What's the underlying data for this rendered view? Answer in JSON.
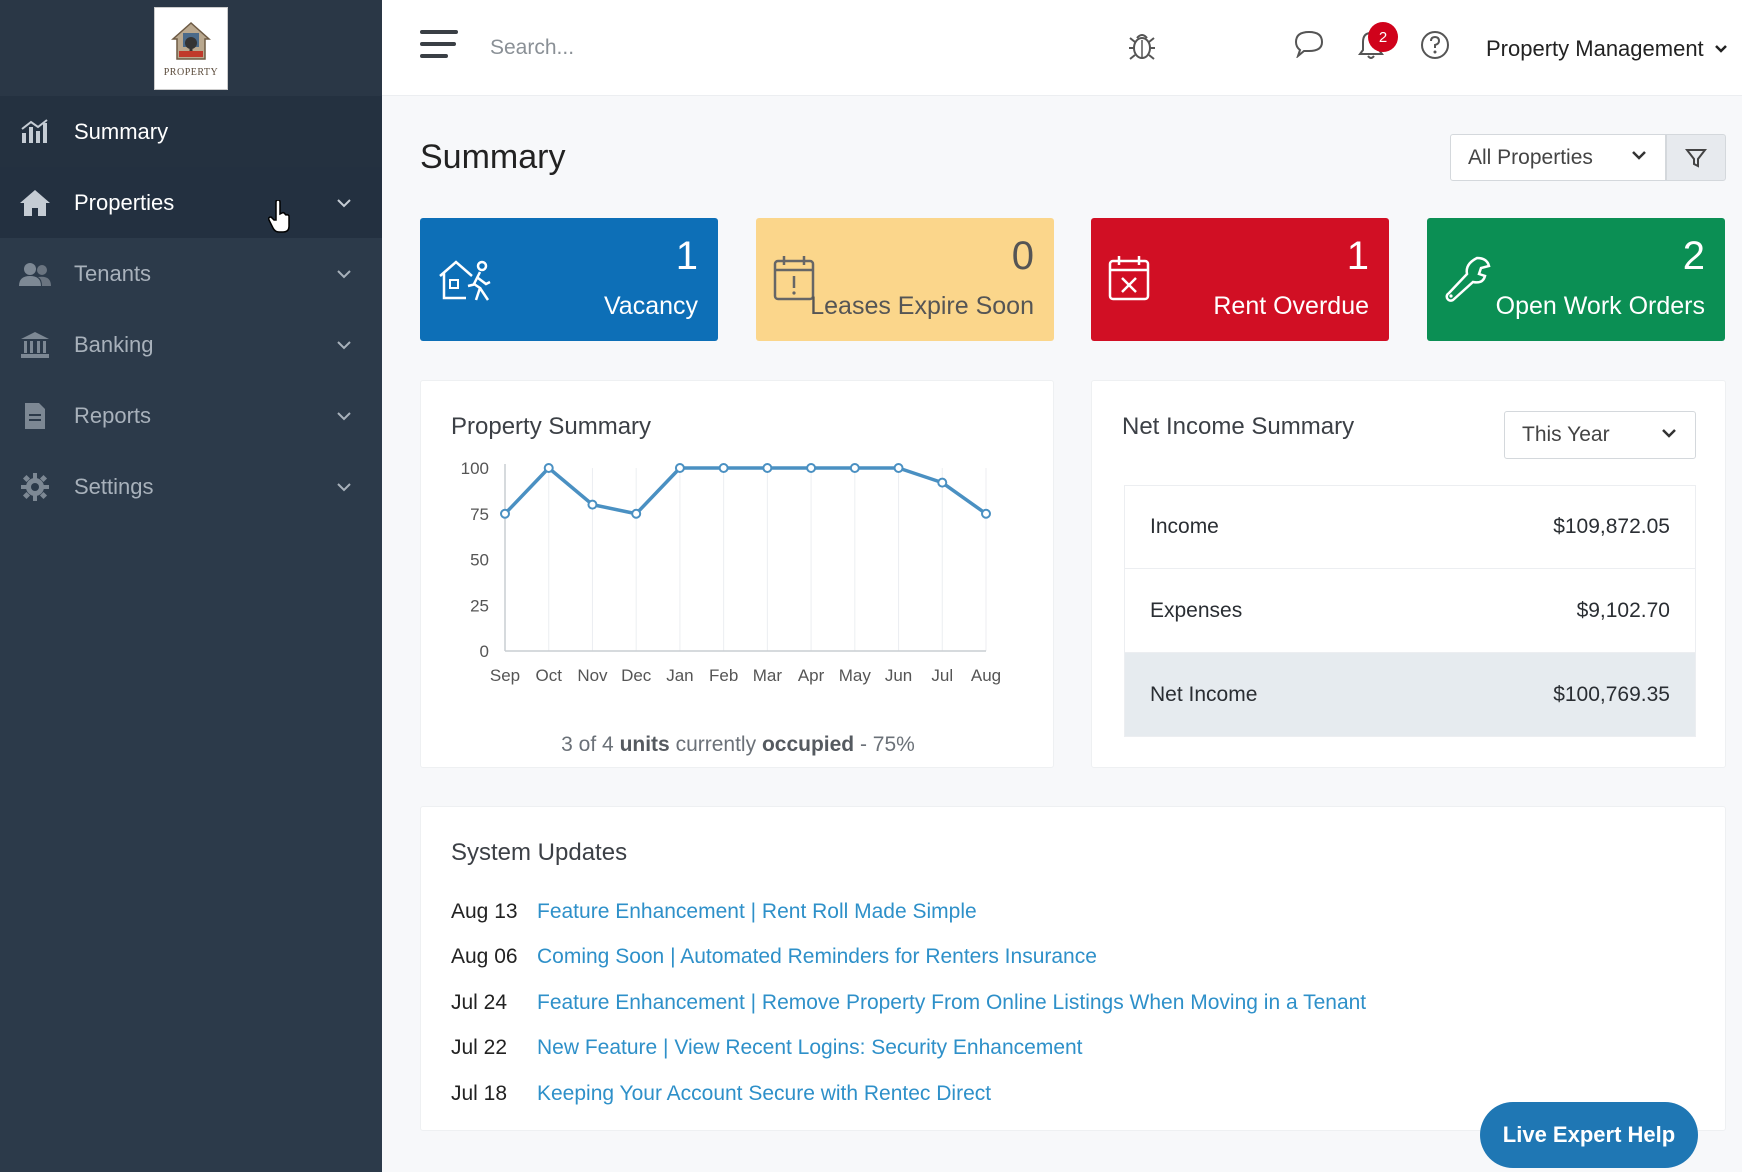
{
  "brand": {
    "logo_text": "PROPERTY"
  },
  "sidebar": {
    "items": [
      {
        "label": "Summary"
      },
      {
        "label": "Properties"
      },
      {
        "label": "Tenants"
      },
      {
        "label": "Banking"
      },
      {
        "label": "Reports"
      },
      {
        "label": "Settings"
      }
    ]
  },
  "topbar": {
    "search_placeholder": "Search...",
    "notification_count": "2",
    "account_name": "Property Management"
  },
  "page": {
    "title": "Summary",
    "property_filter": "All Properties"
  },
  "kpis": [
    {
      "value": "1",
      "label": "Vacancy",
      "color": "#0d6fb7"
    },
    {
      "value": "0",
      "label": "Leases Expire Soon",
      "color": "#fbd68b"
    },
    {
      "value": "1",
      "label": "Rent Overdue",
      "color": "#d10f24"
    },
    {
      "value": "2",
      "label": "Open Work Orders",
      "color": "#0b8f54"
    }
  ],
  "property_summary": {
    "title": "Property Summary",
    "occupancy": {
      "count": "3",
      "sep1": "of",
      "total": "4",
      "units": "units",
      "currently": "currently",
      "occupied": "occupied",
      "percent": "- 75%"
    }
  },
  "chart_data": {
    "type": "line",
    "categories": [
      "Sep",
      "Oct",
      "Nov",
      "Dec",
      "Jan",
      "Feb",
      "Mar",
      "Apr",
      "May",
      "Jun",
      "Jul",
      "Aug"
    ],
    "values": [
      75,
      100,
      80,
      75,
      100,
      100,
      100,
      100,
      100,
      100,
      92,
      75
    ],
    "ylim": [
      0,
      100
    ],
    "yticks": [
      "0",
      "25",
      "50",
      "75",
      "100"
    ],
    "color": "#4a90c2",
    "grid": true
  },
  "net_income": {
    "title": "Net Income Summary",
    "period": "This Year",
    "rows": [
      {
        "label": "Income",
        "value": "$109,872.05"
      },
      {
        "label": "Expenses",
        "value": "$9,102.70"
      },
      {
        "label": "Net Income",
        "value": "$100,769.35"
      }
    ]
  },
  "system_updates": {
    "title": "System Updates",
    "items": [
      {
        "date": "Aug 13",
        "text": "Feature Enhancement | Rent Roll Made Simple"
      },
      {
        "date": "Aug 06",
        "text": "Coming Soon | Automated Reminders for Renters Insurance"
      },
      {
        "date": "Jul 24",
        "text": "Feature Enhancement | Remove Property From Online Listings When Moving in a Tenant"
      },
      {
        "date": "Jul 22",
        "text": "New Feature | View Recent Logins: Security Enhancement"
      },
      {
        "date": "Jul 18",
        "text": "Keeping Your Account Secure with Rentec Direct"
      }
    ]
  },
  "help_button": "Live Expert Help"
}
